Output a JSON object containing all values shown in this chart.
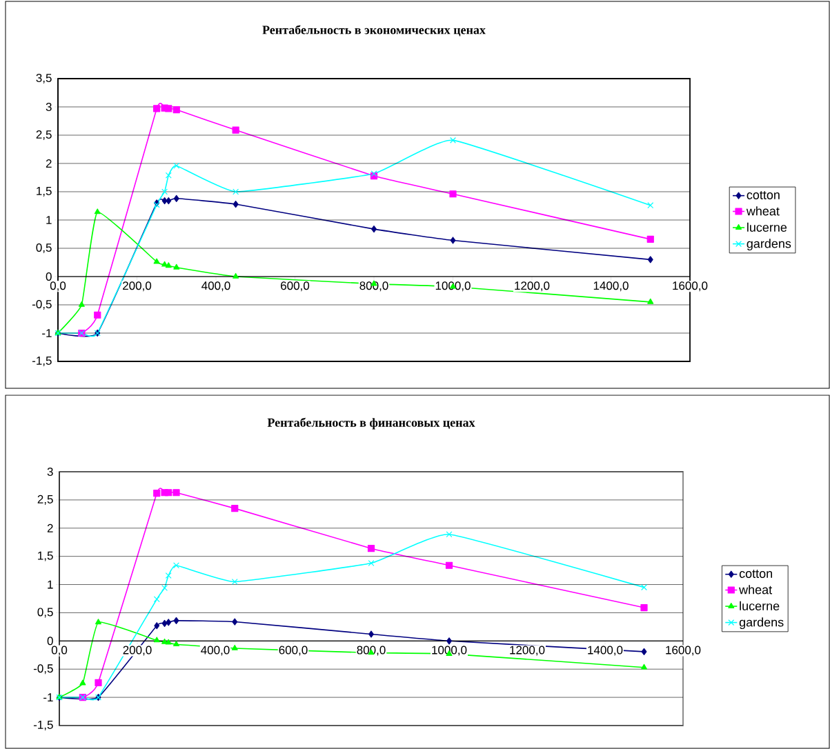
{
  "chart_data": [
    {
      "type": "line",
      "title": "Рентабельность в экономических ценах",
      "x": [
        0,
        60,
        100,
        250,
        270,
        280,
        300,
        450,
        800,
        1000,
        1500
      ],
      "series": [
        {
          "name": "cotton",
          "color": "#000080",
          "marker": "diamond",
          "values": [
            -1,
            null,
            -1,
            1.3,
            1.34,
            1.34,
            1.38,
            1.28,
            0.84,
            0.64,
            0.3
          ]
        },
        {
          "name": "wheat",
          "color": "#ff00ff",
          "marker": "square",
          "values": [
            null,
            -1,
            -0.68,
            2.97,
            2.98,
            2.97,
            2.95,
            2.59,
            1.78,
            1.46,
            0.66
          ]
        },
        {
          "name": "lucerne",
          "color": "#00ff00",
          "marker": "triangle",
          "values": [
            -1,
            -0.5,
            1.14,
            0.26,
            0.21,
            0.19,
            0.16,
            0.0,
            -0.13,
            -0.18,
            -0.45
          ]
        },
        {
          "name": "gardens",
          "color": "#00ffff",
          "marker": "cross",
          "values": [
            -1,
            -1,
            -1,
            1.27,
            1.5,
            1.79,
            1.96,
            1.5,
            1.82,
            2.41,
            1.26
          ]
        }
      ],
      "xlim": [
        0,
        1600
      ],
      "xticks": [
        {
          "value": 0,
          "label": "0,0"
        },
        {
          "value": 200,
          "label": "200,0"
        },
        {
          "value": 400,
          "label": "400,0"
        },
        {
          "value": 600,
          "label": "600,0"
        },
        {
          "value": 800,
          "label": "800,0"
        },
        {
          "value": 1000,
          "label": "1000,0"
        },
        {
          "value": 1200,
          "label": "1200,0"
        },
        {
          "value": 1400,
          "label": "1400,0"
        },
        {
          "value": 1600,
          "label": "1600,0"
        }
      ],
      "ylim": [
        -1.5,
        3.5
      ],
      "yticks": [
        {
          "value": -1.5,
          "label": "-1,5"
        },
        -1,
        {
          "value": -0.5,
          "label": "-0,5"
        },
        0,
        {
          "value": 0.5,
          "label": "0,5"
        },
        1,
        {
          "value": 1.5,
          "label": "1,5"
        },
        2,
        {
          "value": 2.5,
          "label": "2,5"
        },
        3,
        {
          "value": 3.5,
          "label": "3,5"
        }
      ],
      "grid": "y",
      "legend": "right"
    },
    {
      "type": "line",
      "title": "Рентабельность в финансовых ценах",
      "x": [
        0,
        60,
        100,
        250,
        270,
        280,
        300,
        450,
        800,
        1000,
        1500
      ],
      "series": [
        {
          "name": "cotton",
          "color": "#000080",
          "marker": "diamond",
          "values": [
            -1,
            null,
            -1,
            0.27,
            0.31,
            0.33,
            0.36,
            0.34,
            0.12,
            0.0,
            -0.19
          ]
        },
        {
          "name": "wheat",
          "color": "#ff00ff",
          "marker": "square",
          "values": [
            null,
            -1,
            -0.74,
            2.62,
            2.63,
            2.63,
            2.63,
            2.35,
            1.64,
            1.34,
            0.59
          ]
        },
        {
          "name": "lucerne",
          "color": "#00ff00",
          "marker": "triangle",
          "values": [
            -1,
            -0.75,
            0.33,
            0.01,
            -0.02,
            -0.03,
            -0.06,
            -0.13,
            -0.21,
            -0.23,
            -0.47
          ]
        },
        {
          "name": "gardens",
          "color": "#00ffff",
          "marker": "cross",
          "values": [
            -1,
            -1,
            -1,
            0.74,
            0.94,
            1.16,
            1.34,
            1.05,
            1.38,
            1.89,
            0.95
          ]
        }
      ],
      "xlim": [
        0,
        1600
      ],
      "xticks": [
        {
          "value": 0,
          "label": "0,0"
        },
        {
          "value": 200,
          "label": "200,0"
        },
        {
          "value": 400,
          "label": "400,0"
        },
        {
          "value": 600,
          "label": "600,0"
        },
        {
          "value": 800,
          "label": "800,0"
        },
        {
          "value": 1000,
          "label": "1000,0"
        },
        {
          "value": 1200,
          "label": "1200,0"
        },
        {
          "value": 1400,
          "label": "1400,0"
        },
        {
          "value": 1600,
          "label": "1600,0"
        }
      ],
      "ylim": [
        -1.5,
        3
      ],
      "yticks": [
        {
          "value": -1.5,
          "label": "-1,5"
        },
        -1,
        {
          "value": -0.5,
          "label": "-0,5"
        },
        0,
        {
          "value": 0.5,
          "label": "0,5"
        },
        1,
        {
          "value": 1.5,
          "label": "1,5"
        },
        2,
        {
          "value": 2.5,
          "label": "2,5"
        },
        3
      ],
      "grid": "y",
      "legend": "right"
    }
  ]
}
